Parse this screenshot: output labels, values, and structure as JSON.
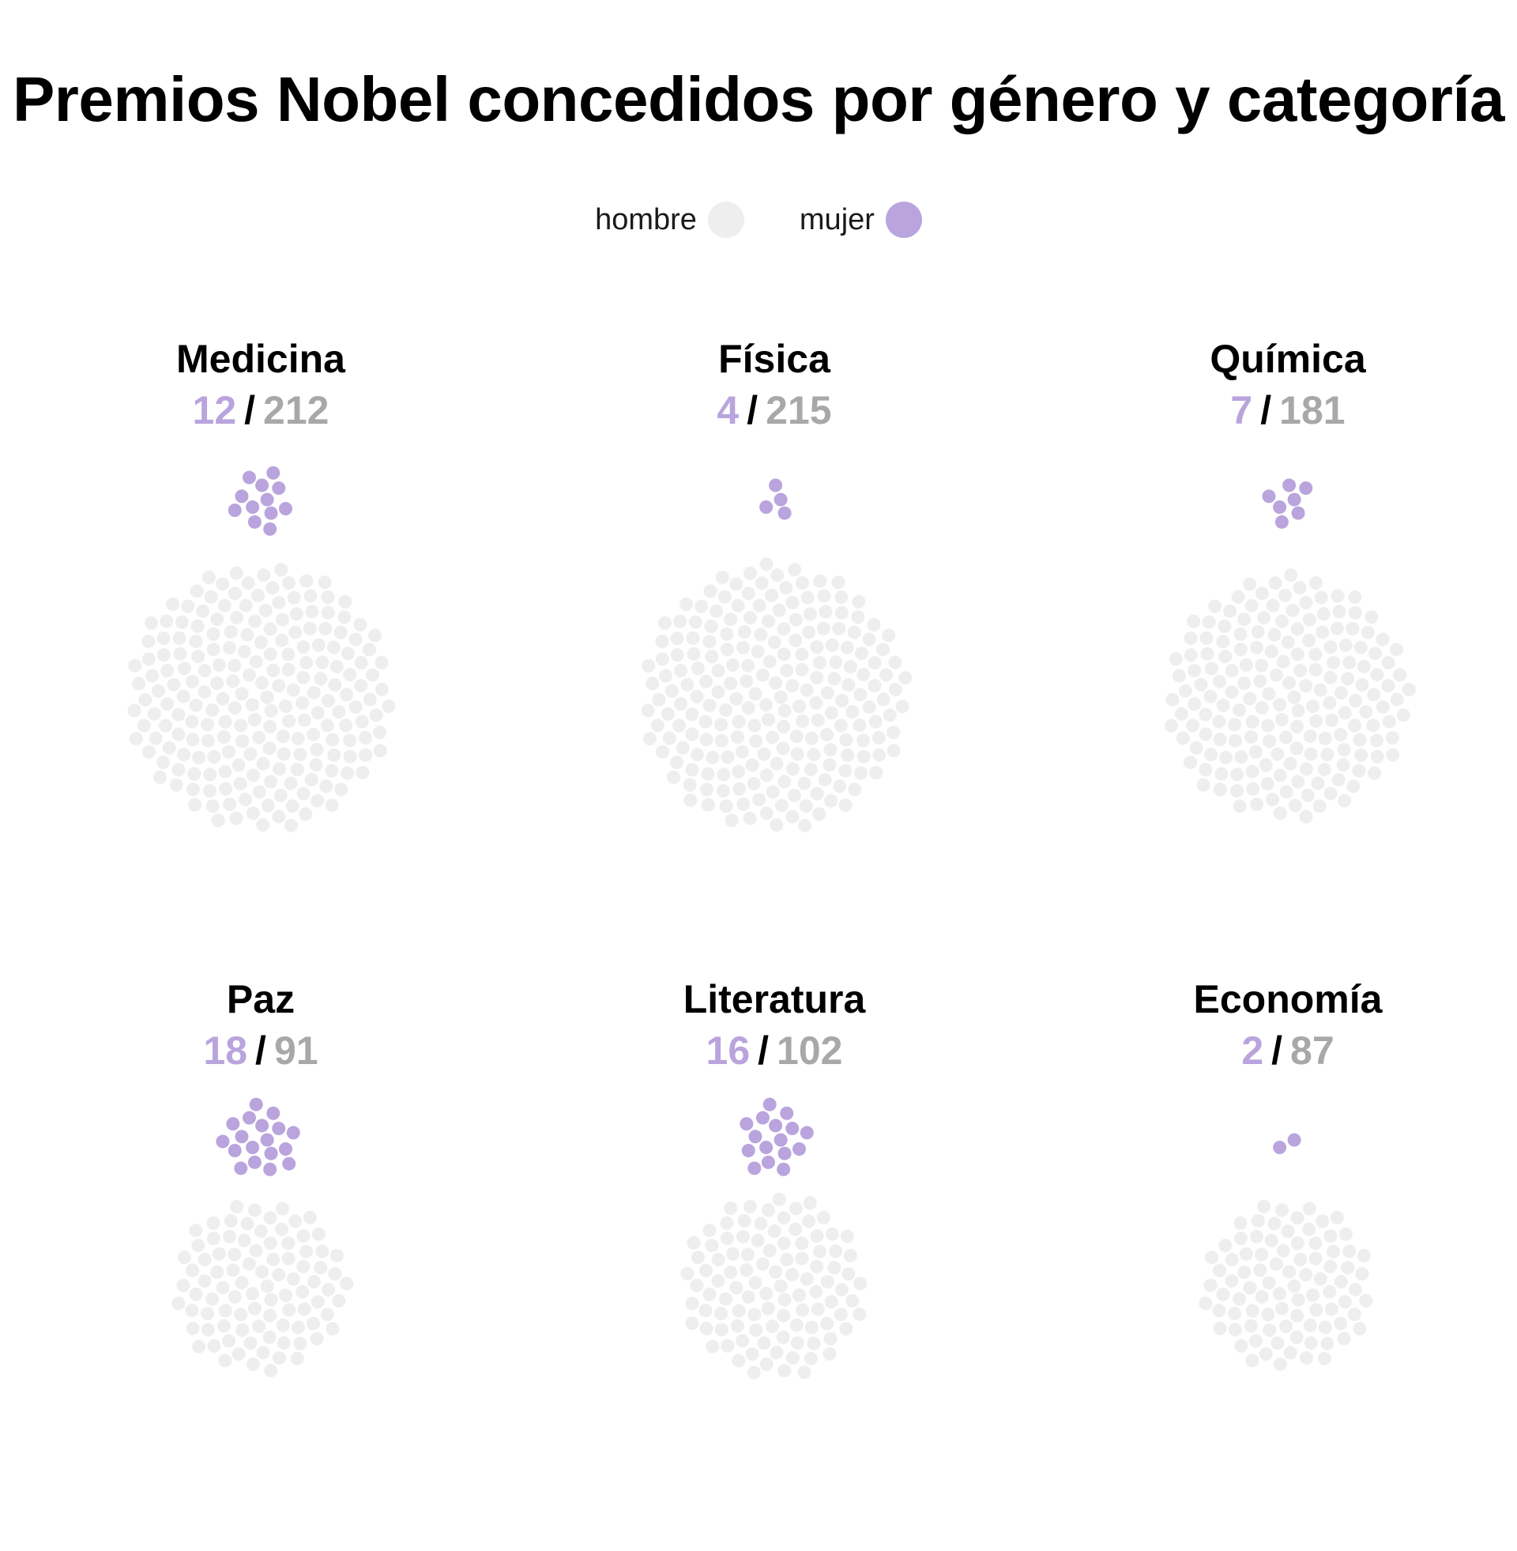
{
  "title": "Premios Nobel concedidos por género y categoría",
  "legend": {
    "items": [
      {
        "label": "hombre",
        "color": "#eeeeee"
      },
      {
        "label": "mujer",
        "color": "#b9a4dd"
      }
    ]
  },
  "separator": "/",
  "chart_data": {
    "type": "scatter",
    "title": "Premios Nobel concedidos por género y categoría",
    "legend_position": "top-center",
    "colors": {
      "mujer": "#b9a4dd",
      "hombre": "#eeeeee",
      "hombre_text": "#a8a8a8"
    },
    "categories": [
      "Medicina",
      "Física",
      "Química",
      "Paz",
      "Literatura",
      "Economía"
    ],
    "series": [
      {
        "name": "mujer",
        "values": [
          12,
          4,
          7,
          18,
          16,
          2
        ]
      },
      {
        "name": "hombre",
        "values": [
          212,
          215,
          181,
          91,
          102,
          87
        ]
      }
    ]
  }
}
